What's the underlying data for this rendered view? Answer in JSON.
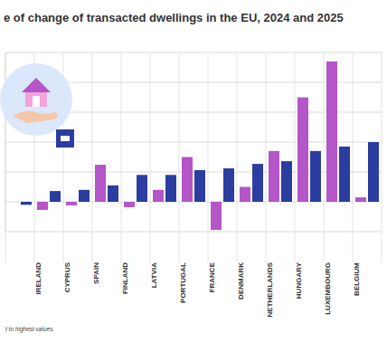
{
  "chart_data": {
    "type": "bar",
    "title": "e of change of transacted dwellings in the EU, 2024 and 2025",
    "footnote": "t to highest values.",
    "categories": [
      null,
      "IRELAND",
      "CYPRUS",
      "SPAIN",
      "FINLAND",
      "LATVIA",
      "PORTUGAL",
      "FRANCE",
      "DENMARK",
      "NETHERLANDS",
      "HUNGARY",
      "LUXEMBOURG",
      "BELGIUM"
    ],
    "series": [
      {
        "name": "2024",
        "color": "#b455c8",
        "values": [
          null,
          -2.7,
          -1.2,
          12.4,
          -1.8,
          4,
          15,
          -9.4,
          5,
          17,
          35,
          47,
          1.5
        ]
      },
      {
        "name": "2025",
        "color": "#2b3d9e",
        "values": [
          -1,
          3.6,
          4,
          5.5,
          9,
          9,
          10.6,
          11.2,
          12.7,
          13.6,
          17,
          18.5,
          20
        ]
      }
    ],
    "ylim": [
      -10,
      50
    ],
    "yticks": [
      -10,
      0,
      10,
      20,
      30,
      40,
      50
    ],
    "grid": true,
    "tick_labels": "x",
    "legend": "none"
  }
}
